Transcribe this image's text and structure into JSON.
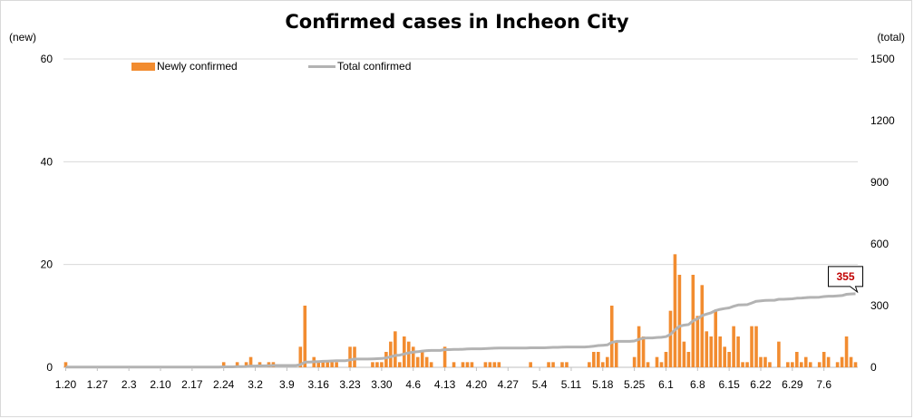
{
  "chart_data": {
    "type": "bar",
    "title": "Confirmed cases in Incheon City",
    "left_axis_unit": "(new)",
    "right_axis_unit": "(total)",
    "y_left_range": [
      0,
      60
    ],
    "y_left_ticks": [
      "0",
      "20",
      "40",
      "60"
    ],
    "y_right_range": [
      0,
      1500
    ],
    "y_right_ticks": [
      "0",
      "300",
      "600",
      "900",
      "1200",
      "1500"
    ],
    "x_tick_labels": [
      "1.20",
      "1.27",
      "2.3",
      "2.10",
      "2.17",
      "2.24",
      "3.2",
      "3.9",
      "3.16",
      "3.23",
      "3.30",
      "4.6",
      "4.13",
      "4.20",
      "4.27",
      "5.4",
      "5.11",
      "5.18",
      "5.25",
      "6.1",
      "6.8",
      "6.15",
      "6.22",
      "6.29",
      "7.6"
    ],
    "legend_placement": "top-left",
    "gridlines": true,
    "colors": {
      "new": "#f28c30",
      "total": "#b3b3b3",
      "callout_text": "#c00000"
    },
    "series": [
      {
        "name": "Newly confirmed",
        "kind": "bar",
        "axis": "left",
        "values": [
          1,
          0,
          0,
          0,
          0,
          0,
          0,
          0,
          0,
          0,
          0,
          0,
          0,
          0,
          0,
          0,
          0,
          0,
          0,
          0,
          0,
          0,
          0,
          0,
          0,
          0,
          0,
          0,
          0,
          0,
          0,
          0,
          0,
          0,
          0,
          1,
          0,
          0,
          1,
          0,
          1,
          2,
          0,
          1,
          0,
          1,
          1,
          0,
          0,
          0,
          0,
          0,
          4,
          12,
          0,
          2,
          1,
          1,
          1,
          1,
          1,
          0,
          0,
          4,
          4,
          0,
          0,
          0,
          1,
          1,
          1,
          3,
          5,
          7,
          1,
          6,
          5,
          4,
          2,
          3,
          2,
          1,
          0,
          0,
          4,
          0,
          1,
          0,
          1,
          1,
          1,
          0,
          0,
          1,
          1,
          1,
          1,
          0,
          0,
          0,
          0,
          0,
          0,
          1,
          0,
          0,
          0,
          1,
          1,
          0,
          1,
          1,
          0,
          0,
          0,
          0,
          1,
          3,
          3,
          1,
          2,
          12,
          5,
          0,
          0,
          0,
          2,
          8,
          6,
          1,
          0,
          2,
          1,
          3,
          11,
          22,
          18,
          5,
          3,
          18,
          10,
          16,
          7,
          6,
          11,
          6,
          4,
          3,
          8,
          6,
          1,
          1,
          8,
          8,
          2,
          2,
          1,
          0,
          5,
          0,
          1,
          1,
          3,
          1,
          2,
          1,
          0,
          1,
          3,
          2,
          0,
          1,
          2,
          6,
          2,
          1
        ],
        "last_value": 1
      },
      {
        "name": "Total confirmed",
        "kind": "line",
        "axis": "right",
        "endpoint_label": "355"
      }
    ]
  }
}
